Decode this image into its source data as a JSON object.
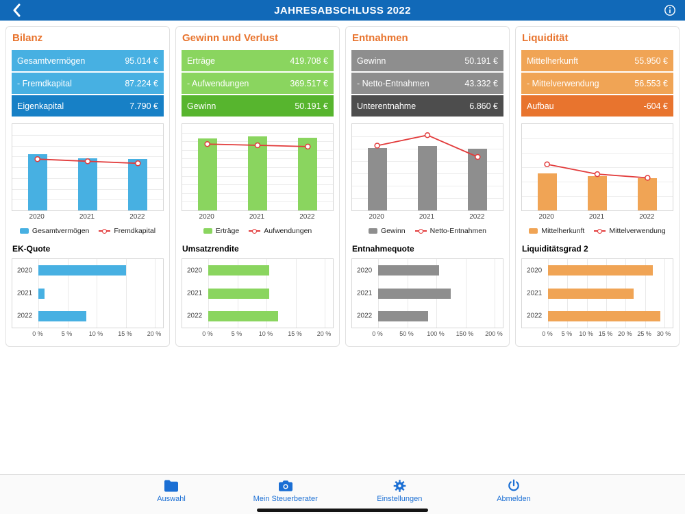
{
  "header": {
    "title": "JAHRESABSCHLUSS 2022"
  },
  "cards": [
    {
      "title": "Bilanz",
      "rows": [
        {
          "label": "Gesamtvermögen",
          "value": "95.014 €"
        },
        {
          "label": "- Fremdkapital",
          "value": "87.224 €"
        },
        {
          "label": "Eigenkapital",
          "value": "7.790 €"
        }
      ],
      "sub_title": "EK-Quote"
    },
    {
      "title": "Gewinn und Verlust",
      "rows": [
        {
          "label": "Erträge",
          "value": "419.708 €"
        },
        {
          "label": "- Aufwendungen",
          "value": "369.517 €"
        },
        {
          "label": "Gewinn",
          "value": "50.191 €"
        }
      ],
      "sub_title": "Umsatzrendite"
    },
    {
      "title": "Entnahmen",
      "rows": [
        {
          "label": "Gewinn",
          "value": "50.191 €"
        },
        {
          "label": "- Netto-Entnahmen",
          "value": "43.332 €"
        },
        {
          "label": "Unterentnahme",
          "value": "6.860 €"
        }
      ],
      "sub_title": "Entnahmequote"
    },
    {
      "title": "Liquidität",
      "rows": [
        {
          "label": "Mittelherkunft",
          "value": "55.950 €"
        },
        {
          "label": "- Mittelverwendung",
          "value": "56.553 €"
        },
        {
          "label": "Aufbau",
          "value": "-604 €"
        }
      ],
      "sub_title": "Liquiditätsgrad 2"
    }
  ],
  "chart_data": [
    {
      "type": "bar+line",
      "categories": [
        "2020",
        "2021",
        "2022"
      ],
      "series": [
        {
          "name": "Gesamtvermögen",
          "type": "bar",
          "color": "#47b0e2",
          "values": [
            104000,
            97000,
            95014
          ]
        },
        {
          "name": "Fremdkapital",
          "type": "line",
          "color": "#e23b3b",
          "values": [
            95000,
            91000,
            87224
          ]
        }
      ],
      "ylim": [
        0,
        160000
      ],
      "grid_divisions": 8,
      "legend_position": "bottom"
    },
    {
      "type": "bar+line",
      "categories": [
        "2020",
        "2021",
        "2022"
      ],
      "series": [
        {
          "name": "Erträge",
          "type": "bar",
          "color": "#8ad55f",
          "values": [
            415000,
            428000,
            419708
          ]
        },
        {
          "name": "Aufwendungen",
          "type": "line",
          "color": "#e23b3b",
          "values": [
            384000,
            377000,
            369517
          ]
        }
      ],
      "ylim": [
        0,
        500000
      ],
      "grid_divisions": 10,
      "legend_position": "bottom"
    },
    {
      "type": "bar+line",
      "categories": [
        "2020",
        "2021",
        "2022"
      ],
      "series": [
        {
          "name": "Gewinn",
          "type": "bar",
          "color": "#8e8e8e",
          "values": [
            50500,
            52000,
            50191
          ]
        },
        {
          "name": "Netto-Entnahmen",
          "type": "line",
          "color": "#e23b3b",
          "values": [
            52500,
            61000,
            43332
          ]
        }
      ],
      "ylim": [
        0,
        70000
      ],
      "grid_divisions": 7,
      "legend_position": "bottom"
    },
    {
      "type": "bar+line",
      "categories": [
        "2020",
        "2021",
        "2022"
      ],
      "series": [
        {
          "name": "Mittelherkunft",
          "type": "bar",
          "color": "#f0a455",
          "values": [
            64000,
            60000,
            55950
          ]
        },
        {
          "name": "Mittelverwendung",
          "type": "line",
          "color": "#e23b3b",
          "values": [
            80000,
            63000,
            56553
          ]
        }
      ],
      "ylim": [
        0,
        150000
      ],
      "grid_divisions": 6,
      "legend_position": "bottom"
    },
    {
      "type": "hbar",
      "title": "EK-Quote",
      "categories": [
        "2020",
        "2021",
        "2022"
      ],
      "values": [
        15,
        1,
        8.2
      ],
      "color": "#47b0e2",
      "xmax": 20,
      "ticks": [
        "0 %",
        "5 %",
        "10 %",
        "15 %",
        "20 %"
      ]
    },
    {
      "type": "hbar",
      "title": "Umsatzrendite",
      "categories": [
        "2020",
        "2021",
        "2022"
      ],
      "values": [
        10.5,
        10.5,
        12
      ],
      "color": "#8ad55f",
      "xmax": 20,
      "ticks": [
        "0 %",
        "5 %",
        "10 %",
        "15 %",
        "20 %"
      ]
    },
    {
      "type": "hbar",
      "title": "Entnahmequote",
      "categories": [
        "2020",
        "2021",
        "2022"
      ],
      "values": [
        105,
        125,
        86
      ],
      "color": "#8e8e8e",
      "xmax": 200,
      "ticks": [
        "0 %",
        "50 %",
        "100 %",
        "150 %",
        "200 %"
      ]
    },
    {
      "type": "hbar",
      "title": "Liquiditätsgrad 2",
      "categories": [
        "2020",
        "2021",
        "2022"
      ],
      "values": [
        27,
        22,
        29
      ],
      "color": "#f0a455",
      "xmax": 30,
      "ticks": [
        "0 %",
        "5 %",
        "10 %",
        "15 %",
        "20 %",
        "25 %",
        "30 %"
      ]
    }
  ],
  "tabbar": {
    "items": [
      {
        "label": "Auswahl",
        "icon": "folder-icon"
      },
      {
        "label": "Mein Steuerberater",
        "icon": "camera-icon"
      },
      {
        "label": "Einstellungen",
        "icon": "gear-icon"
      },
      {
        "label": "Abmelden",
        "icon": "power-icon"
      }
    ]
  },
  "colors": {
    "header_blue": "#1169b8",
    "title_orange": "#e8742e",
    "nav_blue": "#1b6fd4",
    "line_red": "#e23b3b",
    "bilanz_light": "#47b0e2",
    "bilanz_dark": "#1780c6",
    "guv_light": "#8ad55f",
    "guv_dark": "#57b52e",
    "entnahmen_light": "#8e8e8e",
    "entnahmen_dark": "#4d4d4d",
    "liquiditaet_light": "#f0a455",
    "liquiditaet_dark": "#e8742e"
  }
}
